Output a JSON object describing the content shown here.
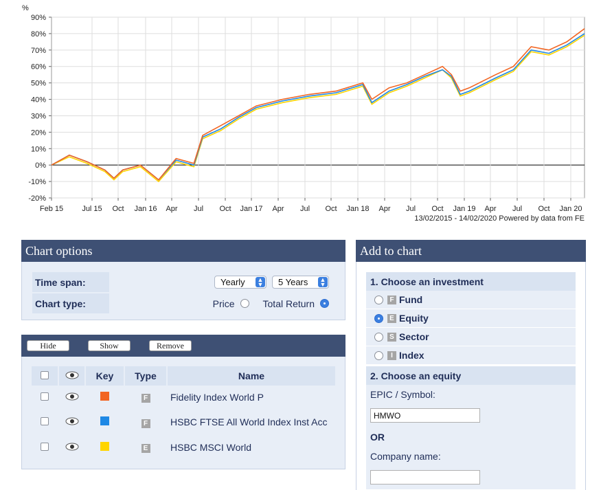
{
  "chart_data": {
    "type": "line",
    "ylabel": "%",
    "ylim": [
      -20,
      90
    ],
    "yticks": [
      "90%",
      "80%",
      "70%",
      "60%",
      "50%",
      "40%",
      "30%",
      "20%",
      "10%",
      "0%",
      "-10%",
      "-20%"
    ],
    "xticks": [
      "Feb 15",
      "Jul 15",
      "Oct",
      "Jan 16",
      "Apr",
      "Jul",
      "Oct",
      "Jan 17",
      "Apr",
      "Jul",
      "Oct",
      "Jan 18",
      "Apr",
      "Jul",
      "Oct",
      "Jan 19",
      "Apr",
      "Jul",
      "Oct",
      "Jan 20"
    ],
    "grid": true,
    "footer": "13/02/2015 - 14/02/2020 Powered by data from FE",
    "series": [
      {
        "name": "Fidelity Index World P",
        "color": "#f26522",
        "x": [
          "2015-02-13",
          "2015-04",
          "2015-06",
          "2015-08",
          "2015-09",
          "2015-10",
          "2015-12",
          "2016-02",
          "2016-04",
          "2016-06",
          "2016-07",
          "2016-09",
          "2016-11",
          "2017-01",
          "2017-04",
          "2017-07",
          "2017-10",
          "2018-01",
          "2018-02",
          "2018-04",
          "2018-06",
          "2018-08",
          "2018-10",
          "2018-11",
          "2018-12",
          "2019-01",
          "2019-04",
          "2019-06",
          "2019-08",
          "2019-10",
          "2019-12",
          "2020-02-14"
        ],
        "y": [
          0,
          6,
          2,
          -3,
          -8,
          -3,
          0,
          -9,
          4,
          1,
          18,
          24,
          30,
          36,
          40,
          43,
          45,
          50,
          40,
          47,
          50,
          55,
          60,
          55,
          45,
          47,
          55,
          60,
          72,
          70,
          75,
          83
        ]
      },
      {
        "name": "HSBC FTSE All World Index Inst Acc",
        "color": "#1e88e5",
        "x": [
          "2015-02-13",
          "2015-04",
          "2015-06",
          "2015-08",
          "2015-09",
          "2015-10",
          "2015-12",
          "2016-02",
          "2016-04",
          "2016-06",
          "2016-07",
          "2016-09",
          "2016-11",
          "2017-01",
          "2017-04",
          "2017-07",
          "2017-10",
          "2018-01",
          "2018-02",
          "2018-04",
          "2018-06",
          "2018-08",
          "2018-10",
          "2018-11",
          "2018-12",
          "2019-01",
          "2019-04",
          "2019-06",
          "2019-08",
          "2019-10",
          "2019-12",
          "2020-02-14"
        ],
        "y": [
          0,
          6,
          2,
          -3,
          -8,
          -3,
          0,
          -9,
          3,
          0,
          17,
          22,
          29,
          35,
          39,
          42,
          44,
          49,
          38,
          45,
          49,
          54,
          58,
          54,
          43,
          45,
          53,
          58,
          70,
          68,
          73,
          80
        ]
      },
      {
        "name": "HSBC MSCI World",
        "color": "#ffd500",
        "x": [
          "2015-02-13",
          "2015-04",
          "2015-06",
          "2015-08",
          "2015-09",
          "2015-10",
          "2015-12",
          "2016-02",
          "2016-04",
          "2016-06",
          "2016-07",
          "2016-09",
          "2016-11",
          "2017-01",
          "2017-04",
          "2017-07",
          "2017-10",
          "2018-01",
          "2018-02",
          "2018-04",
          "2018-06",
          "2018-08",
          "2018-10",
          "2018-11",
          "2018-12",
          "2019-01",
          "2019-04",
          "2019-06",
          "2019-08",
          "2019-10",
          "2019-12",
          "2020-02-14"
        ],
        "y": [
          0,
          5,
          1,
          -4,
          -9,
          -4,
          -1,
          -10,
          2,
          -1,
          16,
          21,
          28,
          34,
          38,
          41,
          43,
          48,
          37,
          44,
          48,
          53,
          58,
          53,
          42,
          44,
          52,
          57,
          69,
          67,
          72,
          79
        ]
      }
    ]
  },
  "chart_options": {
    "title": "Chart options",
    "time_span_label": "Time span:",
    "time_span_value": "Yearly",
    "duration_value": "5 Years",
    "chart_type_label": "Chart type:",
    "price_label": "Price",
    "total_return_label": "Total Return",
    "selected": "Total Return"
  },
  "series_panel": {
    "hide_label": "Hide",
    "show_label": "Show",
    "remove_label": "Remove",
    "headers": {
      "key": "Key",
      "type": "Type",
      "name": "Name"
    },
    "rows": [
      {
        "color": "#f26522",
        "type": "F",
        "name": "Fidelity Index World P"
      },
      {
        "color": "#1e88e5",
        "type": "F",
        "name": "HSBC FTSE All World Index Inst Acc"
      },
      {
        "color": "#ffd500",
        "type": "E",
        "name": "HSBC MSCI World"
      }
    ]
  },
  "add_to_chart": {
    "title": "Add to chart",
    "step1": "1. Choose an investment",
    "options": [
      {
        "letter": "F",
        "label": "Fund",
        "selected": false
      },
      {
        "letter": "E",
        "label": "Equity",
        "selected": true
      },
      {
        "letter": "S",
        "label": "Sector",
        "selected": false
      },
      {
        "letter": "I",
        "label": "Index",
        "selected": false
      }
    ],
    "step2": "2. Choose an equity",
    "epic_label": "EPIC / Symbol:",
    "epic_value": "HMWO",
    "or_label": "OR",
    "company_label": "Company name:",
    "company_value": ""
  }
}
